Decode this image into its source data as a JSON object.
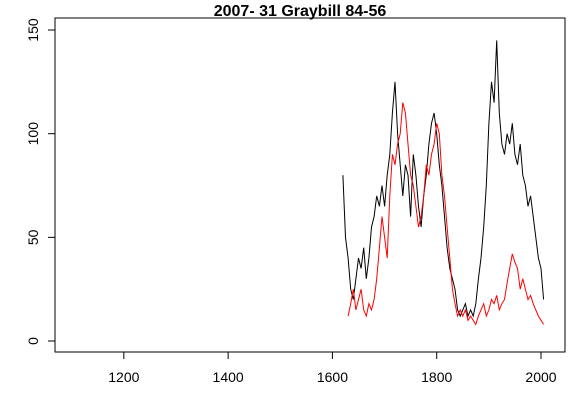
{
  "chart_data": {
    "type": "line",
    "title": "2007- 31     Graybill  84-56",
    "x": [
      1620,
      1625,
      1630,
      1635,
      1640,
      1645,
      1650,
      1655,
      1660,
      1665,
      1670,
      1675,
      1680,
      1685,
      1690,
      1695,
      1700,
      1705,
      1710,
      1715,
      1720,
      1725,
      1730,
      1735,
      1740,
      1745,
      1750,
      1755,
      1760,
      1765,
      1770,
      1775,
      1780,
      1785,
      1790,
      1795,
      1800,
      1805,
      1810,
      1815,
      1820,
      1825,
      1830,
      1835,
      1840,
      1845,
      1850,
      1855,
      1860,
      1865,
      1870,
      1875,
      1880,
      1885,
      1890,
      1895,
      1900,
      1905,
      1910,
      1915,
      1920,
      1925,
      1930,
      1935,
      1940,
      1945,
      1950,
      1955,
      1960,
      1965,
      1970,
      1975,
      1980,
      1985,
      1990,
      1995,
      2000,
      2005
    ],
    "series": [
      {
        "color": "#000000",
        "values": [
          80,
          50,
          40,
          25,
          20,
          30,
          40,
          35,
          45,
          30,
          40,
          55,
          60,
          70,
          65,
          75,
          65,
          80,
          90,
          110,
          125,
          100,
          85,
          70,
          85,
          80,
          60,
          90,
          80,
          65,
          55,
          70,
          80,
          95,
          105,
          110,
          100,
          85,
          75,
          60,
          45,
          35,
          30,
          25,
          15,
          12,
          15,
          18,
          12,
          15,
          12,
          18,
          30,
          40,
          55,
          75,
          105,
          125,
          115,
          145,
          110,
          95,
          90,
          100,
          95,
          105,
          90,
          85,
          95,
          80,
          75,
          65,
          70,
          60,
          50,
          40,
          35,
          20
        ]
      },
      {
        "color": "#ff0000",
        "values": [
          null,
          null,
          12,
          18,
          25,
          15,
          20,
          25,
          15,
          12,
          18,
          15,
          20,
          30,
          45,
          60,
          50,
          40,
          70,
          90,
          85,
          95,
          100,
          115,
          110,
          95,
          80,
          75,
          65,
          55,
          60,
          70,
          85,
          80,
          90,
          95,
          105,
          100,
          80,
          70,
          55,
          40,
          25,
          18,
          12,
          15,
          12,
          15,
          10,
          12,
          10,
          8,
          12,
          15,
          18,
          12,
          15,
          20,
          18,
          22,
          15,
          18,
          20,
          28,
          35,
          42,
          38,
          35,
          25,
          30,
          25,
          20,
          22,
          18,
          15,
          12,
          10,
          8
        ]
      }
    ],
    "xlim": [
      1068,
      2046
    ],
    "xticks": [
      1200,
      1400,
      1600,
      1800,
      2000
    ],
    "ylim": [
      -5.3,
      155.8
    ],
    "yticks": [
      0,
      50,
      100,
      150
    ]
  }
}
